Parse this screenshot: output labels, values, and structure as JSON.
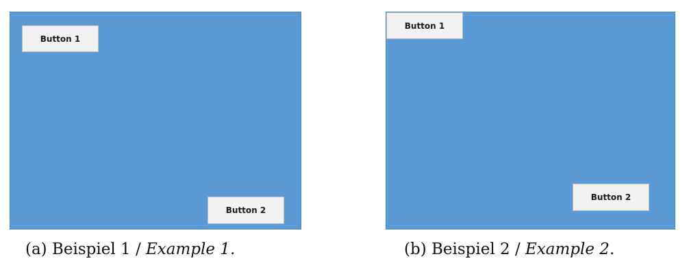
{
  "example_a": {
    "button_1": "Button 1",
    "button_2": "Button 2",
    "caption_prefix": "(a) Beispiel 1 / ",
    "caption_italic": "Example 1",
    "caption_suffix": "."
  },
  "example_b": {
    "button_1": "Button 1",
    "button_2": "Button 2",
    "caption_prefix": "(b) Beispiel 2 / ",
    "caption_italic": "Example 2",
    "caption_suffix": "."
  },
  "colors": {
    "panel_background": "#5b9bd5",
    "button_background": "#f2f2f2"
  }
}
